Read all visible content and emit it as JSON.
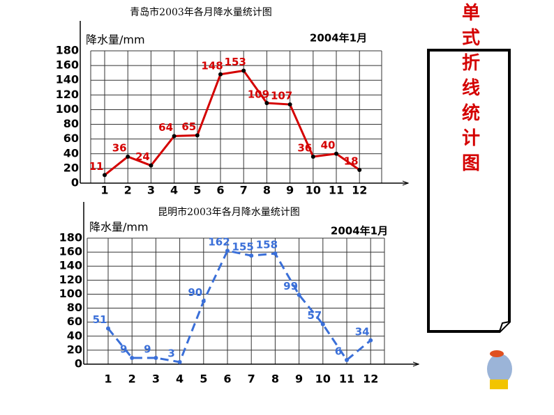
{
  "chart_data": [
    {
      "type": "line",
      "title": "青岛市2003年各月降水量统计图",
      "y_label": "降水量/mm",
      "annotation": "2004年1月",
      "categories": [
        "1",
        "2",
        "3",
        "4",
        "5",
        "6",
        "7",
        "8",
        "9",
        "10",
        "11",
        "12"
      ],
      "values": [
        11,
        36,
        24,
        64,
        65,
        148,
        153,
        109,
        107,
        36,
        40,
        18
      ],
      "color": "#d40000",
      "line_style": "solid",
      "ylim": [
        0,
        180
      ],
      "yticks": [
        0,
        20,
        40,
        60,
        80,
        100,
        120,
        140,
        160,
        180
      ],
      "grid": true
    },
    {
      "type": "line",
      "title": "昆明市2003年各月降水量统计图",
      "y_label": "降水量/mm",
      "annotation": "2004年1月",
      "categories": [
        "1",
        "2",
        "3",
        "4",
        "5",
        "6",
        "7",
        "8",
        "9",
        "10",
        "11",
        "12"
      ],
      "values": [
        51,
        9,
        9,
        3,
        90,
        162,
        155,
        158,
        99,
        57,
        6,
        34
      ],
      "color": "#3a6fd8",
      "line_style": "dashed",
      "ylim": [
        0,
        180
      ],
      "yticks": [
        0,
        20,
        40,
        60,
        80,
        100,
        120,
        140,
        160,
        180
      ],
      "grid": true
    }
  ],
  "side_label": "单式折线统计图"
}
